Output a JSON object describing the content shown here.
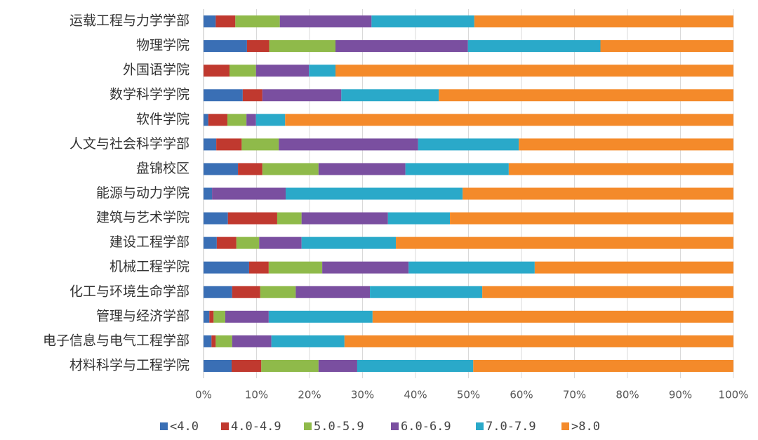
{
  "chart_data": {
    "type": "stacked-bar-horizontal",
    "categories": [
      "运载工程与力学学部",
      "物理学院",
      "外国语学院",
      "数学科学学院",
      "软件学院",
      "人文与社会科学学部",
      "盘锦校区",
      "能源与动力学院",
      "建筑与艺术学院",
      "建设工程学部",
      "机械工程学院",
      "化工与环境生命学部",
      "管理与经济学部",
      "电子信息与电气工程学部",
      "材料科学与工程学院"
    ],
    "series": [
      {
        "name": "<4.0",
        "color": "#3a6fb5",
        "values": [
          2.3,
          8.2,
          0,
          7.4,
          0.9,
          2.4,
          6.5,
          1.6,
          4.6,
          2.5,
          8.6,
          5.4,
          1.1,
          1.5,
          5.3
        ]
      },
      {
        "name": "4.0-4.9",
        "color": "#c0392f",
        "values": [
          3.7,
          4.2,
          4.9,
          3.7,
          3.6,
          4.8,
          4.6,
          0,
          9.3,
          3.7,
          3.7,
          5.3,
          0.8,
          0.8,
          5.6
        ]
      },
      {
        "name": "5.0-5.9",
        "color": "#8fba4a",
        "values": [
          8.4,
          12.5,
          5.0,
          0,
          3.6,
          7.0,
          10.6,
          0,
          4.6,
          4.3,
          10.1,
          6.7,
          2.2,
          3.1,
          10.8
        ]
      },
      {
        "name": "6.0-6.9",
        "color": "#7a4fa0",
        "values": [
          17.3,
          25.0,
          10.0,
          14.9,
          1.8,
          26.3,
          16.4,
          13.9,
          16.3,
          8.0,
          16.3,
          14.0,
          8.2,
          7.4,
          7.3
        ]
      },
      {
        "name": "7.0-7.9",
        "color": "#2aa9c9",
        "values": [
          19.4,
          25.0,
          5.0,
          18.4,
          5.5,
          19.0,
          19.5,
          33.4,
          11.7,
          17.8,
          23.8,
          21.2,
          19.6,
          13.8,
          21.9
        ]
      },
      {
        "name": ">8.0",
        "color": "#f48a2a",
        "values": [
          48.9,
          25.1,
          75.1,
          55.6,
          84.6,
          40.5,
          42.4,
          51.1,
          53.5,
          63.7,
          37.5,
          47.4,
          68.1,
          73.4,
          49.1
        ]
      }
    ],
    "xlim": [
      0,
      100
    ],
    "xticks": [
      {
        "value": 0,
        "label": "0%"
      },
      {
        "value": 10,
        "label": "10%"
      },
      {
        "value": 20,
        "label": "20%"
      },
      {
        "value": 30,
        "label": "30%"
      },
      {
        "value": 40,
        "label": "40%"
      },
      {
        "value": 50,
        "label": "50%"
      },
      {
        "value": 60,
        "label": "60%"
      },
      {
        "value": 70,
        "label": "70%"
      },
      {
        "value": 80,
        "label": "80%"
      },
      {
        "value": 90,
        "label": "90%"
      },
      {
        "value": 100,
        "label": "100%"
      }
    ],
    "grid": true,
    "legend": "bottom"
  }
}
